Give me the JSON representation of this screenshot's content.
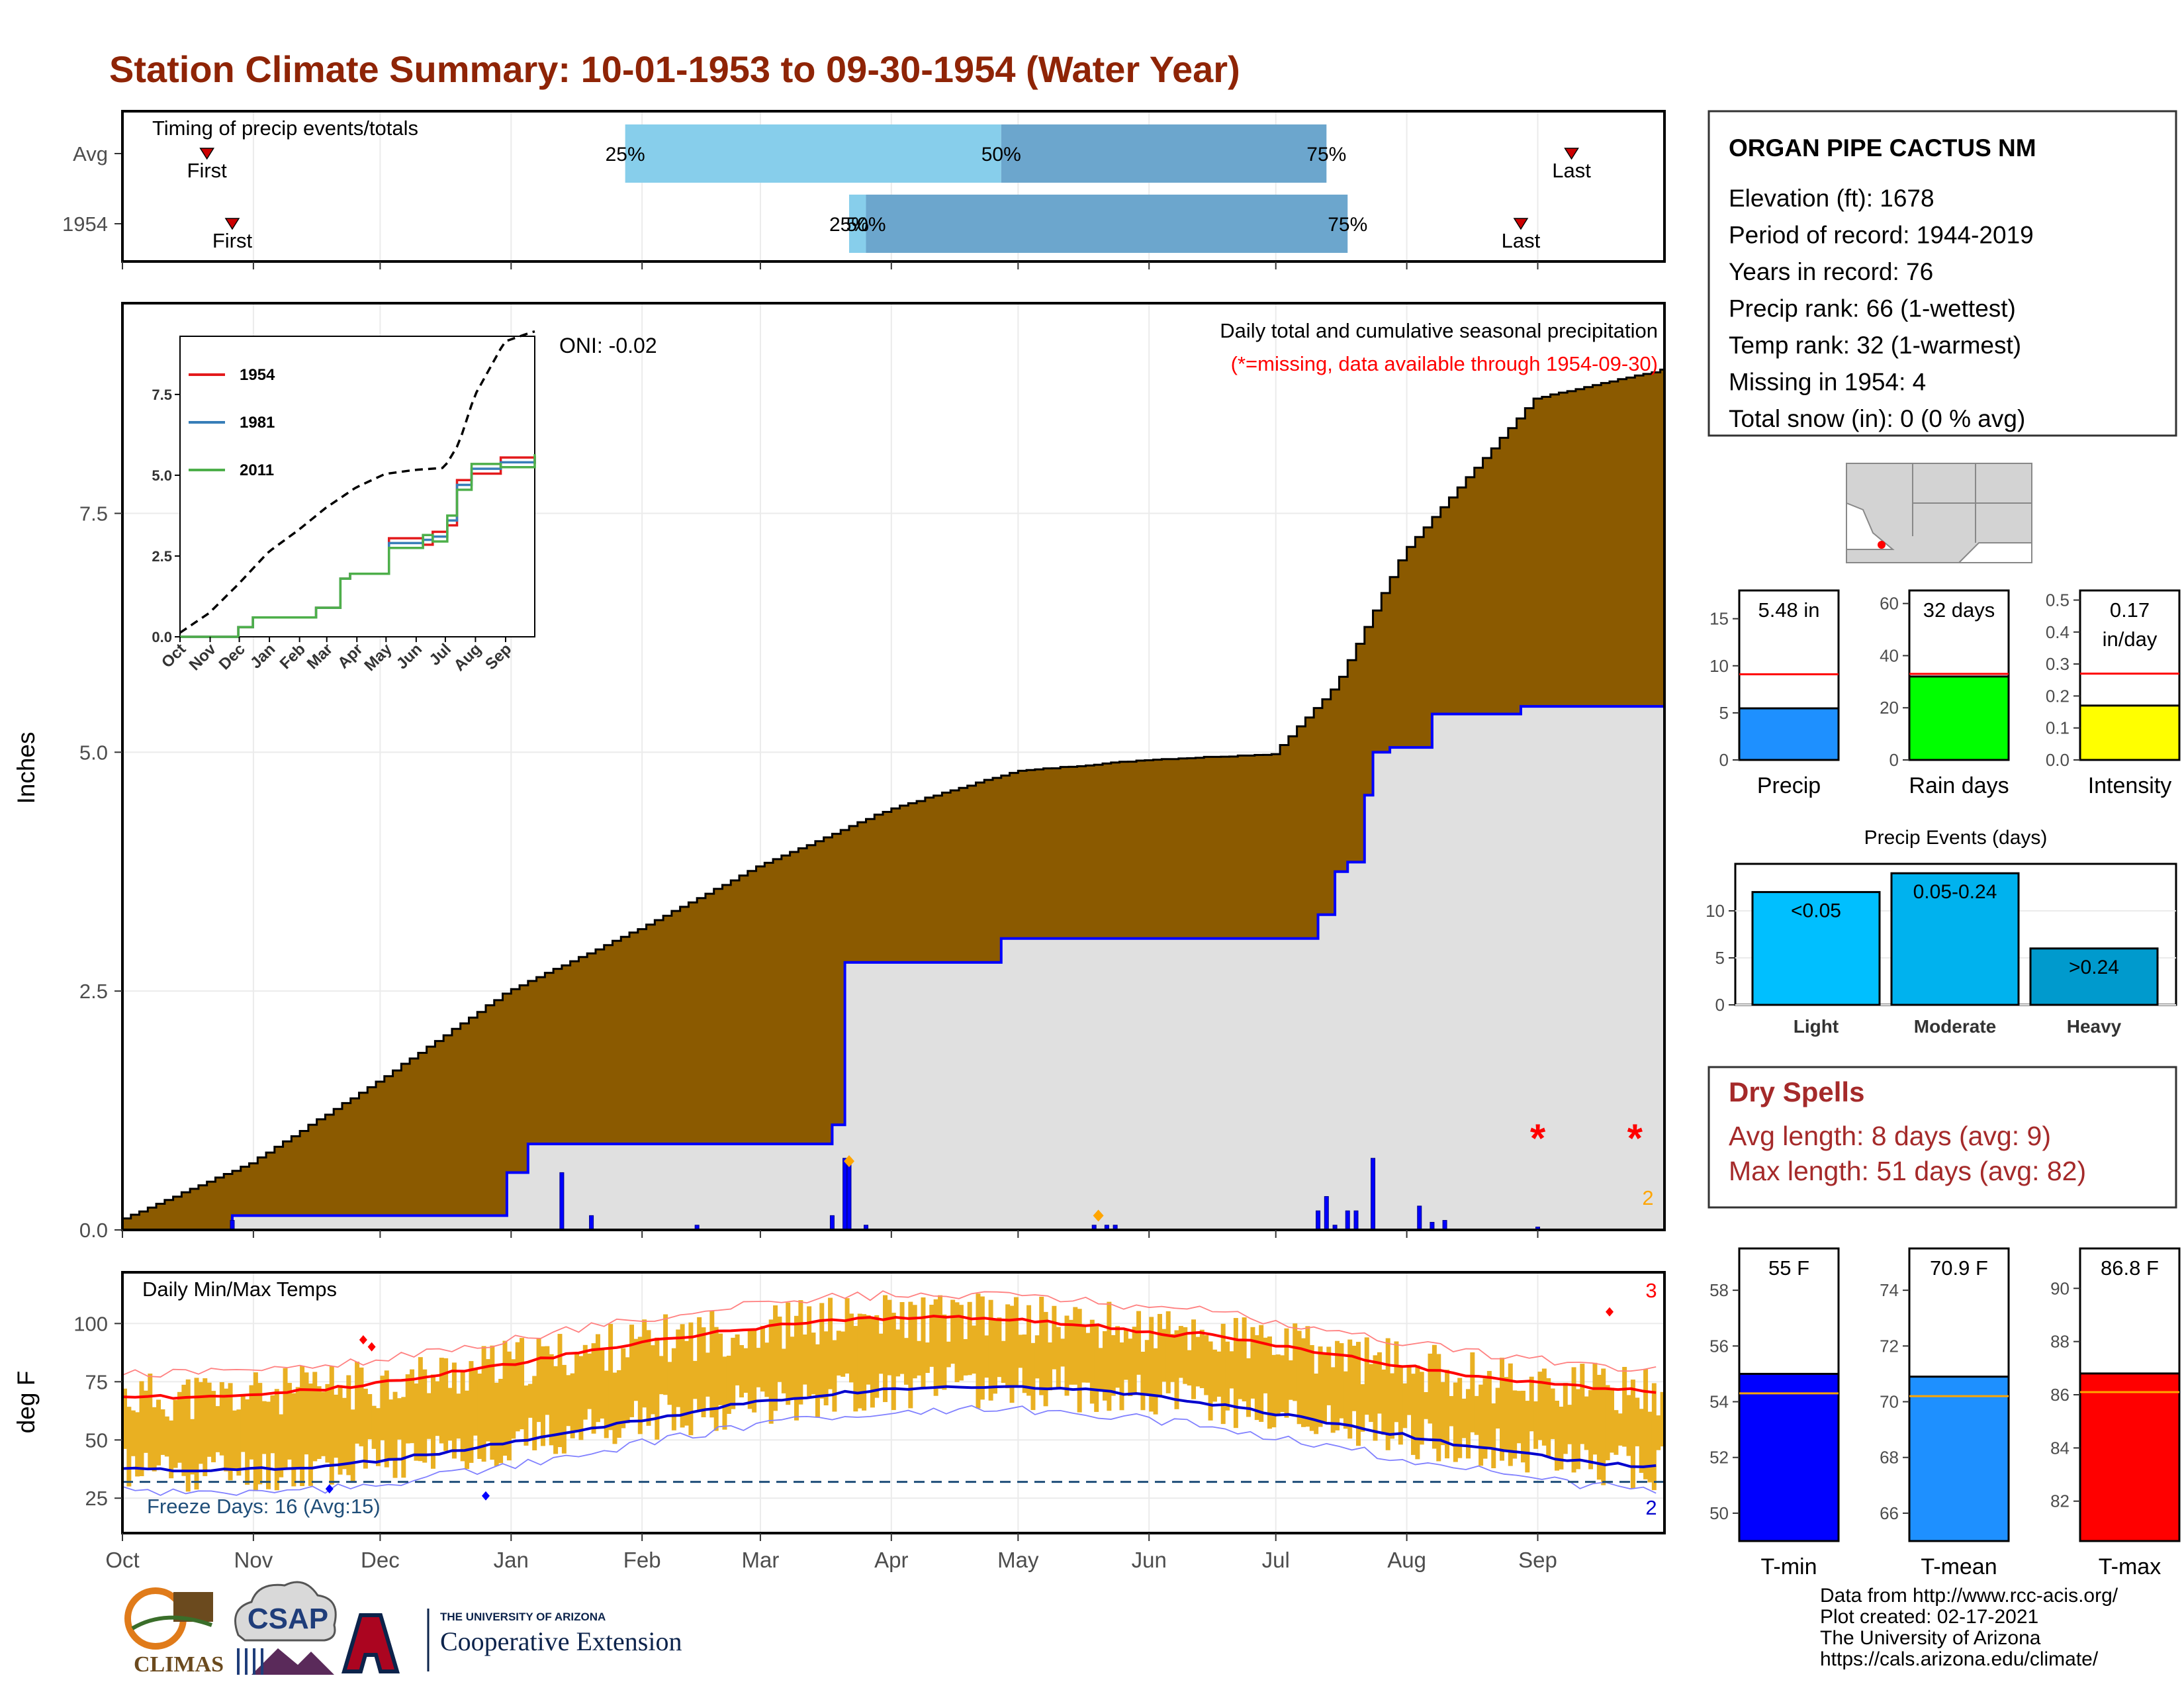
{
  "title": "Station Climate Summary: 10-01-1953 to 09-30-1954 (Water Year)",
  "station": {
    "name": "ORGAN PIPE CACTUS NM",
    "lines": [
      "Elevation (ft): 1678",
      "Period of record: 1944-2019",
      "Years in record: 76",
      "Precip rank: 66 (1-wettest)",
      "Temp rank: 32 (1-warmest)",
      "Missing in 1954: 4",
      "Total snow (in): 0 (0 % avg)"
    ]
  },
  "months": [
    "Oct",
    "Nov",
    "Dec",
    "Jan",
    "Feb",
    "Mar",
    "Apr",
    "May",
    "Jun",
    "Jul",
    "Aug",
    "Sep"
  ],
  "timing": {
    "label": "Timing of precip events/totals",
    "rows": [
      "Avg",
      "1954"
    ],
    "first_label": "First",
    "last_label": "Last",
    "avg": {
      "first_day": 20,
      "p25": 119,
      "p50": 208,
      "p75": 285,
      "last_day": 343
    },
    "y1954": {
      "first_day": 26,
      "p25": 172,
      "p50": 176,
      "p75": 290,
      "last_day": 331
    },
    "pct_labels": [
      "25%",
      "50%",
      "75%"
    ]
  },
  "precip_panel": {
    "ylabel": "Inches",
    "yticks": [
      "0.0",
      "2.5",
      "5.0",
      "7.5"
    ],
    "ymax": 9.7,
    "caption": "Daily total and cumulative seasonal precipitation",
    "missing_note": "(*=missing, data available through 1954-09-30)",
    "oni": "ONI: -0.02",
    "missing_count": "2",
    "colors": {
      "avg_fill": "#8b5a00",
      "obs_fill": "#e0e0e0",
      "obs_line": "#0000ff",
      "daily_bar": "#0000ff"
    }
  },
  "chart_data": [
    {
      "type": "area",
      "title": "Daily total and cumulative seasonal precipitation",
      "ylabel": "Inches",
      "ylim": [
        0,
        9.7
      ],
      "series": [
        {
          "name": "Avg cumulative",
          "x_day": [
            0,
            30,
            60,
            91,
            122,
            150,
            181,
            211,
            242,
            272,
            287,
            303,
            334,
            364
          ],
          "values": [
            0.12,
            0.7,
            1.55,
            2.5,
            3.15,
            3.8,
            4.4,
            4.8,
            4.92,
            4.98,
            5.7,
            7.1,
            8.7,
            9.0
          ]
        },
        {
          "name": "1954 cumulative",
          "x_day": [
            0,
            25,
            26,
            90,
            91,
            96,
            104,
            168,
            171,
            207,
            208,
            221,
            222,
            282,
            283,
            287,
            290,
            294,
            296,
            298,
            300,
            307,
            310,
            317,
            331,
            364
          ],
          "values": [
            0,
            0,
            0.15,
            0.15,
            0.6,
            0.9,
            0.9,
            1.1,
            2.8,
            2.8,
            3.05,
            3.05,
            3.05,
            3.05,
            3.3,
            3.75,
            3.85,
            4.55,
            5.0,
            5.0,
            5.05,
            5.05,
            5.4,
            5.4,
            5.48,
            5.48
          ]
        }
      ],
      "daily_bars": [
        [
          26,
          0.1
        ],
        [
          104,
          0.6
        ],
        [
          111,
          0.15
        ],
        [
          136,
          0.05
        ],
        [
          168,
          0.15
        ],
        [
          171,
          0.75
        ],
        [
          172,
          0.75
        ],
        [
          176,
          0.05
        ],
        [
          230,
          0.05
        ],
        [
          233,
          0.05
        ],
        [
          235,
          0.05
        ],
        [
          283,
          0.2
        ],
        [
          285,
          0.35
        ],
        [
          287,
          0.05
        ],
        [
          290,
          0.2
        ],
        [
          292,
          0.2
        ],
        [
          296,
          0.75
        ],
        [
          307,
          0.25
        ],
        [
          310,
          0.08
        ],
        [
          313,
          0.1
        ],
        [
          335,
          0.03
        ]
      ]
    },
    {
      "type": "line",
      "title": "",
      "inset": true,
      "yticks": [
        "0.0",
        "2.5",
        "5.0",
        "7.5"
      ],
      "series": [
        {
          "name": "1954",
          "color": "#e31a1c"
        },
        {
          "name": "1981",
          "color": "#377eb8"
        },
        {
          "name": "2011",
          "color": "#4daf4a"
        }
      ]
    },
    {
      "type": "bar",
      "title": "Daily Min/Max Temps",
      "ylabel": "deg F",
      "yticks": [
        "25",
        "50",
        "75",
        "100"
      ],
      "ylim": [
        10,
        122
      ],
      "freeze_label": "Freeze Days: 16 (Avg:15)",
      "high_count": "3",
      "low_count": "2",
      "freeze_line": 32
    },
    {
      "type": "bar",
      "categories": [
        "Precip",
        "Rain days",
        "Intensity"
      ],
      "values": [
        5.48,
        32,
        0.17
      ],
      "averages": [
        9.1,
        33,
        0.27
      ],
      "value_labels": [
        "5.48 in",
        "32 days",
        "0.17 in/day"
      ],
      "ylims": [
        [
          0,
          18
        ],
        [
          0,
          65
        ],
        [
          0,
          0.53
        ]
      ],
      "yticks": [
        [
          "0",
          "5",
          "10",
          "15"
        ],
        [
          "0",
          "20",
          "40",
          "60"
        ],
        [
          "0.0",
          "0.1",
          "0.2",
          "0.3",
          "0.4",
          "0.5"
        ]
      ],
      "colors": [
        "#1e90ff",
        "#00ff00",
        "#ffff00"
      ]
    },
    {
      "type": "bar",
      "title": "Precip Events (days)",
      "categories": [
        "Light",
        "Moderate",
        "Heavy"
      ],
      "values": [
        12,
        14,
        6
      ],
      "value_labels": [
        "<0.05",
        "0.05-0.24",
        ">0.24"
      ],
      "ylim": [
        0,
        15
      ],
      "yticks": [
        "0",
        "5",
        "10"
      ],
      "colors": [
        "#00bfff",
        "#00b2ee",
        "#009acd"
      ]
    },
    {
      "type": "bar",
      "categories": [
        "T-min",
        "T-mean",
        "T-max"
      ],
      "values": [
        55,
        70.9,
        86.8
      ],
      "averages": [
        54.3,
        70.2,
        86.1
      ],
      "value_labels": [
        "55 F",
        "70.9 F",
        "86.8 F"
      ],
      "ylims": [
        [
          49,
          59.5
        ],
        [
          65,
          75.5
        ],
        [
          80.5,
          91.5
        ]
      ],
      "yticks": [
        [
          "50",
          "52",
          "54",
          "56",
          "58"
        ],
        [
          "66",
          "68",
          "70",
          "72",
          "74"
        ],
        [
          "82",
          "84",
          "86",
          "88",
          "90"
        ]
      ],
      "colors": [
        "#0000ff",
        "#1e90ff",
        "#ff0000"
      ]
    }
  ],
  "dry_spells": {
    "title": "Dry Spells",
    "lines": [
      "Avg length: 8 days (avg: 9)",
      "Max length: 51 days (avg: 82)"
    ]
  },
  "footer": [
    "Data from http://www.rcc-acis.org/",
    "Plot created: 02-17-2021",
    "The University of Arizona",
    "https://cals.arizona.edu/climate/"
  ],
  "logos": {
    "climas": "CLIMAS",
    "csap": "CSAP",
    "ua_small": "THE UNIVERSITY OF ARIZONA",
    "ua_big": "Cooperative Extension"
  }
}
